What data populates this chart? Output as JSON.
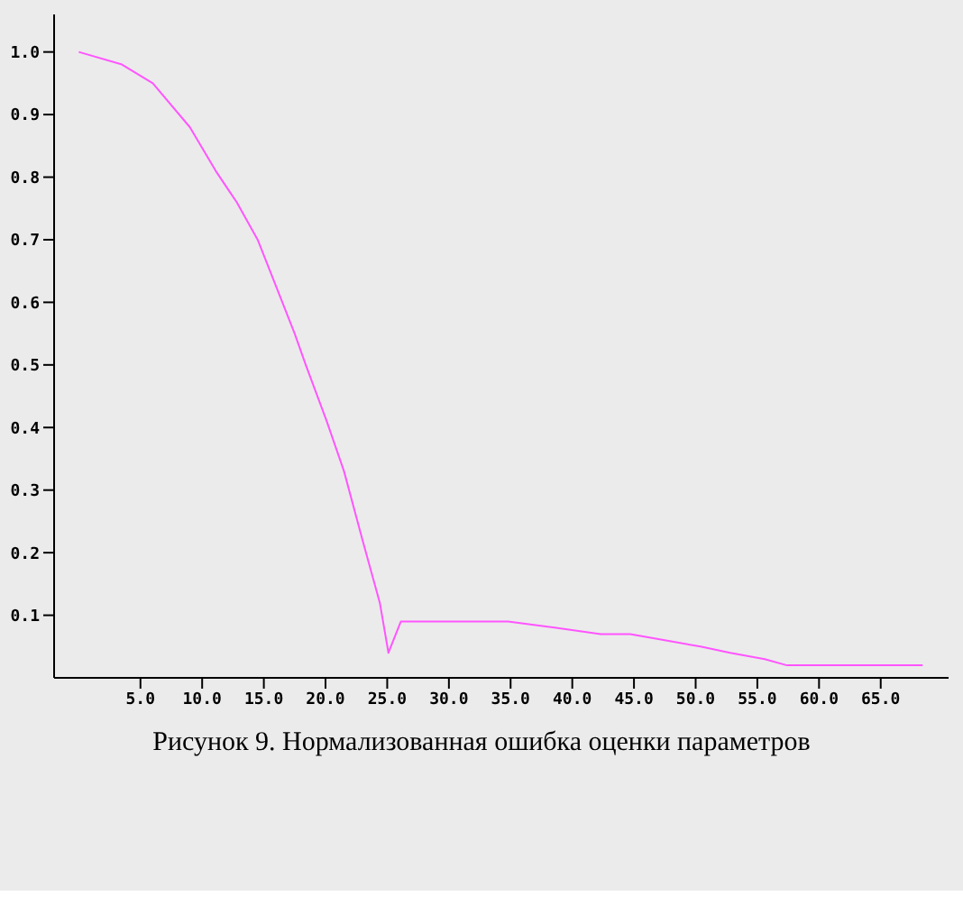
{
  "chart_data": {
    "type": "line",
    "title": "Рисунок 9. Нормализованная ошибка оценки параметров",
    "x": [
      0,
      3.5,
      6,
      9,
      11.1,
      12.8,
      14.5,
      16.3,
      17.5,
      18.4,
      20.1,
      21.5,
      23,
      24.4,
      25.1,
      26.1,
      30.5,
      32.3,
      34.8,
      38.7,
      42.3,
      44.7,
      47.5,
      50.4,
      52.8,
      55.6,
      57.4,
      58.9,
      61.7,
      68.4
    ],
    "series": [
      {
        "color": "#ff55ff",
        "values": [
          1.0,
          0.98,
          0.95,
          0.88,
          0.81,
          0.76,
          0.7,
          0.61,
          0.55,
          0.5,
          0.41,
          0.33,
          0.22,
          0.12,
          0.04,
          0.09,
          0.09,
          0.09,
          0.09,
          0.08,
          0.07,
          0.07,
          0.06,
          0.05,
          0.04,
          0.03,
          0.02,
          0.02,
          0.02,
          0.02
        ]
      }
    ],
    "xlim": [
      -2,
      70.5
    ],
    "ylim": [
      0,
      1.06
    ],
    "xticks": [
      {
        "value": 5,
        "label": "5.0"
      },
      {
        "value": 10,
        "label": "10.0"
      },
      {
        "value": 15,
        "label": "15.0"
      },
      {
        "value": 20,
        "label": "20.0"
      },
      {
        "value": 25,
        "label": "25.0"
      },
      {
        "value": 30,
        "label": "30.0"
      },
      {
        "value": 35,
        "label": "35.0"
      },
      {
        "value": 40,
        "label": "40.0"
      },
      {
        "value": 45,
        "label": "45.0"
      },
      {
        "value": 50,
        "label": "50.0"
      },
      {
        "value": 55,
        "label": "55.0"
      },
      {
        "value": 60,
        "label": "60.0"
      },
      {
        "value": 65,
        "label": "65.0"
      }
    ],
    "yticks": [
      0.1,
      0.2,
      0.3,
      0.4,
      0.5,
      0.6,
      0.7,
      0.8,
      0.9,
      {
        "value": 1.0,
        "label": "1.0"
      }
    ],
    "grid": false,
    "legend": false,
    "marker": "none",
    "line_style": "solid"
  }
}
